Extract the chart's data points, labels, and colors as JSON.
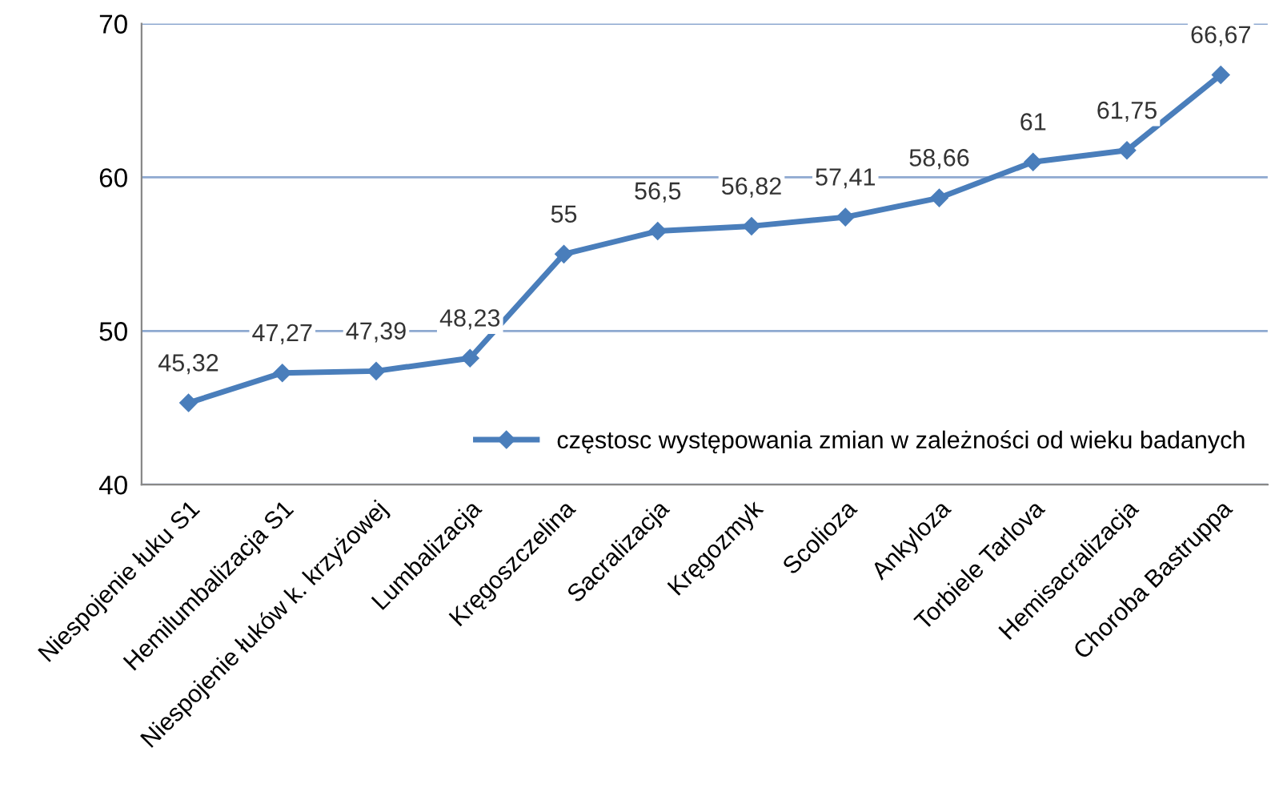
{
  "chart_data": {
    "type": "line",
    "categories": [
      "Niespojenie łuku S1",
      "Hemilumbalizacja S1",
      "Niespojenie łuków k. krzyżowej",
      "Lumbalizacja",
      "Kręgoszczelina",
      "Sacralizacja",
      "Kręgozmyk",
      "Scolioza",
      "Ankyloza",
      "Torbiele Tarlova",
      "Hemisacralizacja",
      "Choroba Bastruppa"
    ],
    "series": [
      {
        "name": "częstosc występowania zmian w zależności od wieku badanych",
        "color": "#4a7ebb",
        "values": [
          45.32,
          47.27,
          47.39,
          48.23,
          55,
          56.5,
          56.82,
          57.41,
          58.66,
          61,
          61.75,
          66.67
        ],
        "value_labels": [
          "45,32",
          "47,27",
          "47,39",
          "48,23",
          "55",
          "56,5",
          "56,82",
          "57,41",
          "58,66",
          "61",
          "61,75",
          "66,67"
        ]
      }
    ],
    "ylim": [
      40,
      70
    ],
    "yticks": [
      40,
      50,
      60,
      70
    ],
    "grid": "y",
    "legend": "bottom right",
    "marker": "diamond",
    "line_style": "solid"
  }
}
